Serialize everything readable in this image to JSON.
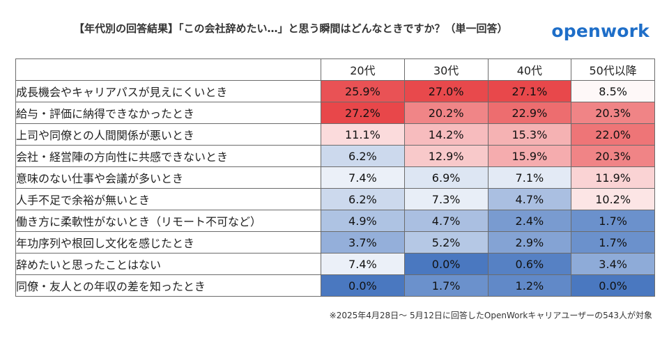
{
  "header": {
    "title": "【年代別の回答結果】「この会社辞めたい…」と思う瞬間はどんなときですか？（単一回答）",
    "logo_text": "openwork"
  },
  "footnote": "※2025年4月28日～ 5月12日に回答したOpenWorkキャリアユーザーの543人が対象",
  "colors": {
    "high": "#e8474a",
    "mid": "#ffffff",
    "low": "#4a78c0",
    "grid": "#6b6b6b"
  },
  "chart_data": {
    "type": "heatmap",
    "columns": [
      "20代",
      "30代",
      "40代",
      "50代以降"
    ],
    "rows": [
      {
        "label": "成長機会やキャリアパスが見えにくいとき",
        "values": [
          25.9,
          27.0,
          27.1,
          8.5
        ]
      },
      {
        "label": "給与・評価に納得できなかったとき",
        "values": [
          27.2,
          20.2,
          22.9,
          20.3
        ]
      },
      {
        "label": "上司や同僚との人間関係が悪いとき",
        "values": [
          11.1,
          14.2,
          15.3,
          22.0
        ]
      },
      {
        "label": "会社・経営陣の方向性に共感できないとき",
        "values": [
          6.2,
          12.9,
          15.9,
          20.3
        ]
      },
      {
        "label": "意味のない仕事や会議が多いとき",
        "values": [
          7.4,
          6.9,
          7.1,
          11.9
        ]
      },
      {
        "label": "人手不足で余裕が無いとき",
        "values": [
          6.2,
          7.3,
          4.7,
          10.2
        ]
      },
      {
        "label": "働き方に柔軟性がないとき（リモート不可など）",
        "values": [
          4.9,
          4.7,
          2.4,
          1.7
        ]
      },
      {
        "label": "年功序列や根回し文化を感じたとき",
        "values": [
          3.7,
          5.2,
          2.9,
          1.7
        ]
      },
      {
        "label": "辞めたいと思ったことはない",
        "values": [
          7.4,
          0.0,
          0.6,
          3.4
        ]
      },
      {
        "label": "同僚・友人との年収の差を知ったとき",
        "values": [
          0.0,
          1.7,
          1.2,
          0.0
        ]
      }
    ],
    "value_suffix": "%"
  }
}
